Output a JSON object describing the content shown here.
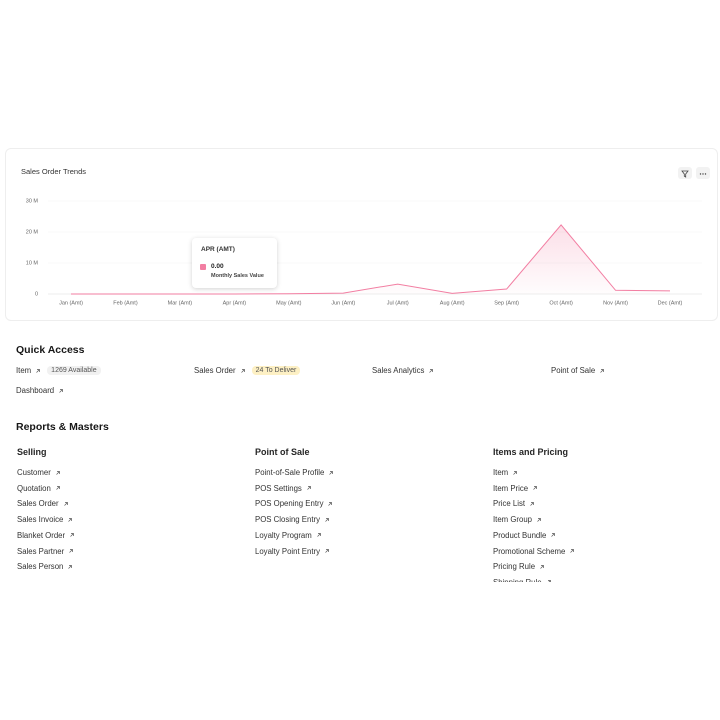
{
  "chart_data": {
    "type": "line",
    "title": "Sales Order Trends",
    "categories": [
      "Jan (Amt)",
      "Feb (Amt)",
      "Mar (Amt)",
      "Apr (Amt)",
      "May (Amt)",
      "Jun (Amt)",
      "Jul (Amt)",
      "Aug (Amt)",
      "Sep (Amt)",
      "Oct (Amt)",
      "Nov (Amt)",
      "Dec (Amt)"
    ],
    "series": [
      {
        "name": "Monthly Sales Value",
        "color": "#f27ea2",
        "values": [
          0,
          0,
          0,
          0,
          100000,
          300000,
          3200000,
          200000,
          1600000,
          22300000,
          1200000,
          1000000
        ]
      }
    ],
    "ylim": [
      0,
      30000000
    ],
    "yticks": [
      0,
      {
        "value": 10000000,
        "label": "10 M"
      },
      {
        "value": 20000000,
        "label": "20 M"
      },
      {
        "value": 30000000,
        "label": "30 M"
      }
    ],
    "grid": true,
    "tooltip": {
      "title": "APR (AMT)",
      "value_label": "0.00"
    }
  },
  "quick_access": {
    "title": "Quick Access",
    "links": [
      {
        "label": "Item",
        "badge": "1269 Available",
        "badge_color": "#f1f1f1"
      },
      {
        "label": "Sales Order",
        "badge": "24 To Deliver",
        "badge_color": "#fdf0c4"
      },
      {
        "label": "Sales Analytics"
      },
      {
        "label": "Point of Sale"
      },
      {
        "label": "Dashboard"
      }
    ]
  },
  "reports": {
    "title": "Reports & Masters",
    "columns": [
      {
        "title": "Selling",
        "links": [
          "Customer",
          "Quotation",
          "Sales Order",
          "Sales Invoice",
          "Blanket Order",
          "Sales Partner",
          "Sales Person"
        ]
      },
      {
        "title": "Point of Sale",
        "links": [
          "Point-of-Sale Profile",
          "POS Settings",
          "POS Opening Entry",
          "POS Closing Entry",
          "Loyalty Program",
          "Loyalty Point Entry"
        ]
      },
      {
        "title": "Items and Pricing",
        "links": [
          "Item",
          "Item Price",
          "Price List",
          "Item Group",
          "Product Bundle",
          "Promotional Scheme",
          "Pricing Rule",
          "Shipping Rule"
        ]
      }
    ]
  }
}
